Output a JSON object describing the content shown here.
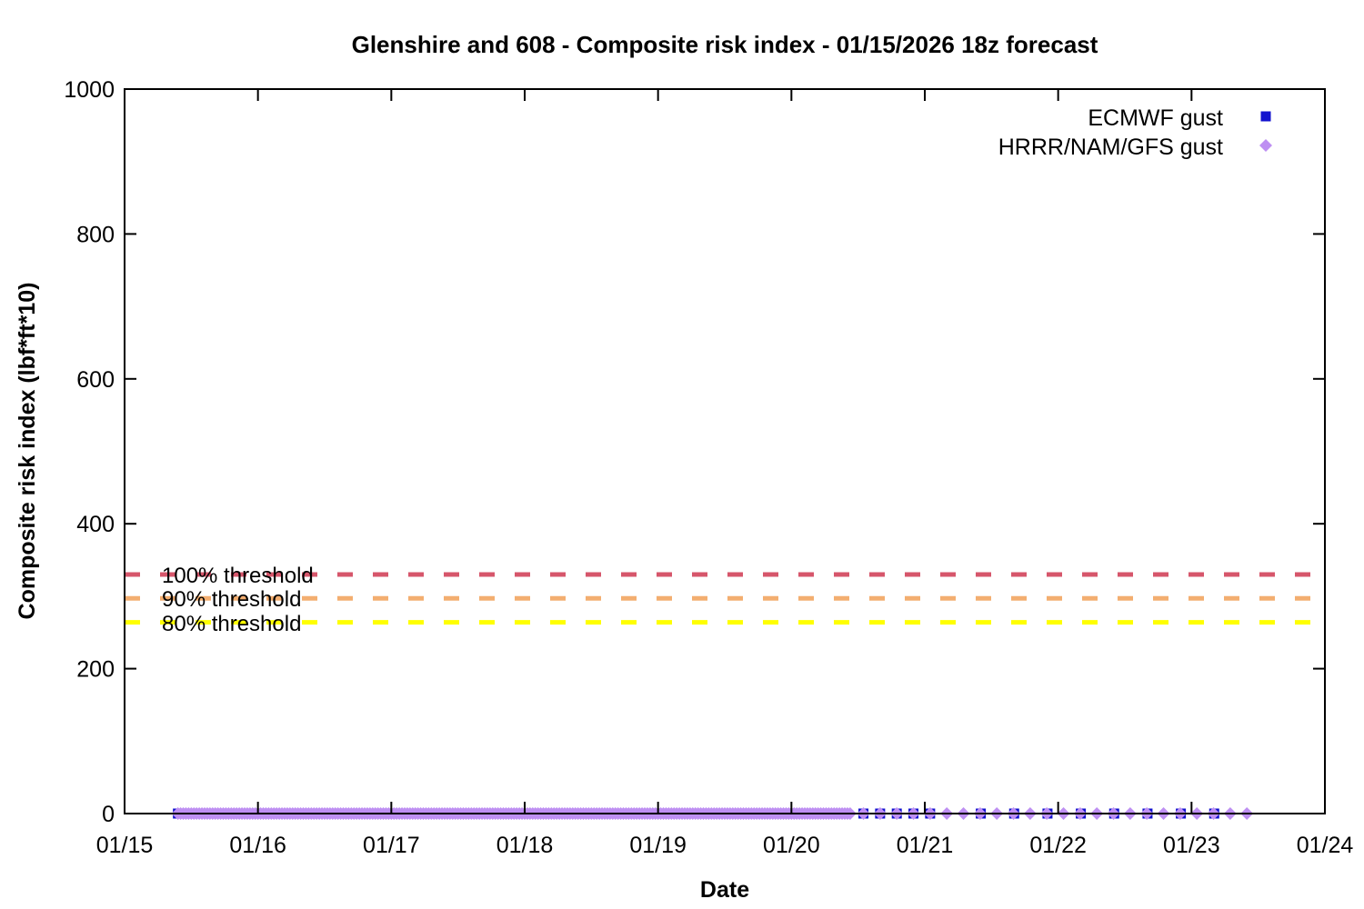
{
  "title": "Glenshire and 608 - Composite risk index - 01/15/2026 18z forecast",
  "x_axis": {
    "label": "Date",
    "tick_labels": [
      "01/15",
      "01/16",
      "01/17",
      "01/18",
      "01/19",
      "01/20",
      "01/21",
      "01/22",
      "01/23",
      "01/24"
    ],
    "tick_values": [
      15,
      16,
      17,
      18,
      19,
      20,
      21,
      22,
      23,
      24
    ],
    "range": [
      15,
      24
    ]
  },
  "y_axis": {
    "label": "Composite risk index (lbf*ft*10)",
    "tick_labels": [
      "0",
      "200",
      "400",
      "600",
      "800",
      "1000"
    ],
    "tick_values": [
      0,
      200,
      400,
      600,
      800,
      1000
    ],
    "range": [
      0,
      1000
    ]
  },
  "legend": {
    "position": "top-right",
    "items": [
      {
        "label": "ECMWF gust",
        "marker": "square",
        "color": "#1212CE"
      },
      {
        "label": "HRRR/NAM/GFS gust",
        "marker": "diamond",
        "color": "#BE8FF2"
      }
    ]
  },
  "thresholds": [
    {
      "label": "100% threshold",
      "value": 330,
      "color": "#D6566B"
    },
    {
      "label": "90% threshold",
      "value": 297,
      "color": "#F3AE70"
    },
    {
      "label": "80% threshold",
      "value": 264,
      "color": "#FFFF00"
    }
  ],
  "chart_data": {
    "type": "scatter",
    "title": "Glenshire and 608 - Composite risk index - 01/15/2026 18z forecast",
    "xlabel": "Date",
    "ylabel": "Composite risk index (lbf*ft*10)",
    "x_unit": "day of January 2026",
    "xlim": [
      15,
      24
    ],
    "ylim": [
      0,
      1000
    ],
    "grid": false,
    "legend_position": "top-right",
    "note": "All forecast points lie at composite risk index 0; x positions given as day-of-month fractions expanded from segments (start/end inclusive, uniform step).",
    "series": [
      {
        "name": "ECMWF gust",
        "marker": "square",
        "color": "#1212CE",
        "y_value": 0,
        "x_segments": [
          {
            "start": 15.4,
            "end": 20.44,
            "step": 0.05
          },
          {
            "start": 20.54,
            "end": 21.04,
            "step": 0.125
          },
          {
            "start": 21.42,
            "end": 23.17,
            "step": 0.25
          }
        ]
      },
      {
        "name": "HRRR/NAM/GFS gust",
        "marker": "diamond",
        "color": "#BE8FF2",
        "y_value": 0,
        "x_segments": [
          {
            "start": 15.4,
            "end": 20.44,
            "step": 0.02
          },
          {
            "start": 20.54,
            "end": 23.42,
            "step": 0.125
          }
        ]
      }
    ],
    "threshold_lines": [
      {
        "label": "100% threshold",
        "value": 330,
        "color": "#D6566B",
        "style": "dashed"
      },
      {
        "label": "90% threshold",
        "value": 297,
        "color": "#F3AE70",
        "style": "dashed"
      },
      {
        "label": "80% threshold",
        "value": 264,
        "color": "#FFFF00",
        "style": "dashed"
      }
    ]
  }
}
